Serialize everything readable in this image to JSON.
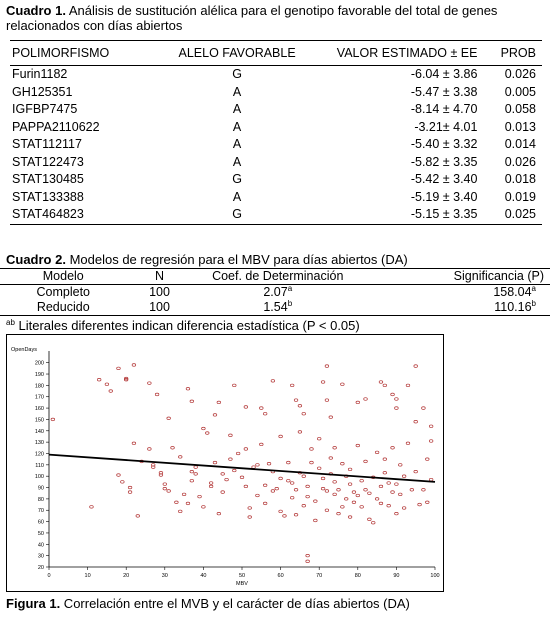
{
  "table1": {
    "caption_label": "Cuadro 1.",
    "caption_text": " Análisis de sustitución alélica para el genotipo favorable del total de genes relacionados con días abiertos",
    "headers": [
      "POLIMORFISMO",
      "ALELO FAVORABLE",
      "VALOR ESTIMADO ± EE",
      "PROB"
    ],
    "rows": [
      [
        "Furin1182",
        "G",
        "-6.04 ± 3.86",
        "0.026"
      ],
      [
        "GH125351",
        "A",
        "-5.47 ± 3.38",
        "0.005"
      ],
      [
        "IGFBP7475",
        "A",
        "-8.14 ± 4.70",
        "0.058"
      ],
      [
        "PAPPA2110622",
        "A",
        "-3.21± 4.01",
        "0.013"
      ],
      [
        "STAT112117",
        "A",
        "-5.40 ± 3.32",
        "0.014"
      ],
      [
        "STAT122473",
        "A",
        "-5.82 ± 3.35",
        "0.026"
      ],
      [
        "STAT130485",
        "G",
        "-5.42 ± 3.40",
        "0.018"
      ],
      [
        "STAT133388",
        "A",
        "-5.19 ± 3.40",
        "0.019"
      ],
      [
        "STAT464823",
        "G",
        "-5.15 ± 3.35",
        "0.025"
      ]
    ]
  },
  "table2": {
    "caption_label": "Cuadro 2.",
    "caption_text": " Modelos de regresión para el MBV para días abiertos (DA)",
    "headers": [
      "Modelo",
      "N",
      "Coef. de Determinación",
      "Significancia (P)"
    ],
    "rows": [
      {
        "modelo": "Completo",
        "n": "100",
        "coef": "2.07",
        "coef_sup": "a",
        "sig": "158.04",
        "sig_sup": "a"
      },
      {
        "modelo": "Reducido",
        "n": "100",
        "coef": "1.54",
        "coef_sup": "b",
        "sig": "110.16",
        "sig_sup": "b"
      }
    ],
    "note_sup": "ab",
    "note_text": " Literales diferentes indican diferencia estadística (P < 0.05)"
  },
  "figure": {
    "caption_label": "Figura 1.",
    "caption_text": " Correlación entre el MVB y el carácter de días abiertos (DA)"
  },
  "chart_data": {
    "type": "scatter",
    "xlabel": "MBV",
    "ylabel": "OpenDays",
    "xlim": [
      0,
      100
    ],
    "ylim": [
      20,
      205
    ],
    "x_ticks": [
      0,
      10,
      20,
      30,
      40,
      50,
      60,
      70,
      80,
      90,
      100
    ],
    "y_ticks": [
      20,
      30,
      40,
      50,
      60,
      70,
      80,
      90,
      100,
      110,
      120,
      130,
      140,
      150,
      160,
      170,
      180,
      190,
      200
    ],
    "trend_line": {
      "x": [
        0,
        100
      ],
      "y": [
        119,
        95
      ]
    },
    "marker_color": "#b03030",
    "line_color": "#000000",
    "points": [
      [
        1,
        150
      ],
      [
        13,
        185
      ],
      [
        15,
        181
      ],
      [
        16,
        175
      ],
      [
        18,
        195
      ],
      [
        20,
        186
      ],
      [
        20,
        185
      ],
      [
        22,
        198
      ],
      [
        26,
        182
      ],
      [
        28,
        172
      ],
      [
        31,
        151
      ],
      [
        36,
        177
      ],
      [
        37,
        166
      ],
      [
        43,
        154
      ],
      [
        44,
        165
      ],
      [
        48,
        180
      ],
      [
        51,
        161
      ],
      [
        55,
        160
      ],
      [
        56,
        155
      ],
      [
        58,
        184
      ],
      [
        63,
        180
      ],
      [
        64,
        167
      ],
      [
        65,
        162
      ],
      [
        66,
        155
      ],
      [
        71,
        183
      ],
      [
        72,
        197
      ],
      [
        72,
        167
      ],
      [
        73,
        152
      ],
      [
        76,
        181
      ],
      [
        80,
        165
      ],
      [
        82,
        168
      ],
      [
        86,
        183
      ],
      [
        87,
        180
      ],
      [
        89,
        172
      ],
      [
        90,
        168
      ],
      [
        90,
        160
      ],
      [
        93,
        180
      ],
      [
        95,
        197
      ],
      [
        95,
        148
      ],
      [
        97,
        160
      ],
      [
        99,
        144
      ],
      [
        11,
        73
      ],
      [
        18,
        101
      ],
      [
        19,
        95
      ],
      [
        21,
        90
      ],
      [
        21,
        86
      ],
      [
        23,
        65
      ],
      [
        22,
        129
      ],
      [
        24,
        113
      ],
      [
        26,
        124
      ],
      [
        27,
        110
      ],
      [
        27,
        108
      ],
      [
        29,
        103
      ],
      [
        29,
        101
      ],
      [
        30,
        93
      ],
      [
        30,
        89
      ],
      [
        31,
        87
      ],
      [
        32,
        125
      ],
      [
        33,
        77
      ],
      [
        34,
        69
      ],
      [
        34,
        117
      ],
      [
        35,
        84
      ],
      [
        36,
        76
      ],
      [
        37,
        104
      ],
      [
        37,
        96
      ],
      [
        38,
        108
      ],
      [
        38,
        102
      ],
      [
        39,
        82
      ],
      [
        40,
        73
      ],
      [
        40,
        142
      ],
      [
        41,
        138
      ],
      [
        42,
        94
      ],
      [
        42,
        91
      ],
      [
        43,
        112
      ],
      [
        44,
        67
      ],
      [
        45,
        86
      ],
      [
        45,
        102
      ],
      [
        46,
        97
      ],
      [
        47,
        115
      ],
      [
        47,
        136
      ],
      [
        48,
        105
      ],
      [
        49,
        120
      ],
      [
        50,
        99
      ],
      [
        51,
        91
      ],
      [
        51,
        124
      ],
      [
        52,
        72
      ],
      [
        52,
        64
      ],
      [
        53,
        108
      ],
      [
        54,
        110
      ],
      [
        54,
        83
      ],
      [
        55,
        128
      ],
      [
        56,
        92
      ],
      [
        56,
        76
      ],
      [
        57,
        111
      ],
      [
        58,
        104
      ],
      [
        58,
        87
      ],
      [
        59,
        89
      ],
      [
        60,
        98
      ],
      [
        60,
        69
      ],
      [
        60,
        135
      ],
      [
        61,
        65
      ],
      [
        62,
        112
      ],
      [
        62,
        96
      ],
      [
        63,
        94
      ],
      [
        63,
        81
      ],
      [
        64,
        88
      ],
      [
        64,
        66
      ],
      [
        65,
        103
      ],
      [
        65,
        139
      ],
      [
        66,
        100
      ],
      [
        66,
        74
      ],
      [
        67,
        91
      ],
      [
        67,
        82
      ],
      [
        67,
        30
      ],
      [
        67,
        25
      ],
      [
        68,
        124
      ],
      [
        68,
        112
      ],
      [
        69,
        78
      ],
      [
        69,
        61
      ],
      [
        70,
        107
      ],
      [
        70,
        133
      ],
      [
        71,
        98
      ],
      [
        71,
        89
      ],
      [
        72,
        87
      ],
      [
        72,
        70
      ],
      [
        73,
        102
      ],
      [
        73,
        116
      ],
      [
        74,
        95
      ],
      [
        74,
        84
      ],
      [
        74,
        125
      ],
      [
        75,
        88
      ],
      [
        75,
        67
      ],
      [
        76,
        111
      ],
      [
        76,
        73
      ],
      [
        77,
        100
      ],
      [
        77,
        80
      ],
      [
        78,
        106
      ],
      [
        78,
        93
      ],
      [
        78,
        64
      ],
      [
        79,
        86
      ],
      [
        79,
        77
      ],
      [
        80,
        83
      ],
      [
        80,
        127
      ],
      [
        81,
        96
      ],
      [
        81,
        73
      ],
      [
        82,
        113
      ],
      [
        82,
        88
      ],
      [
        83,
        85
      ],
      [
        83,
        62
      ],
      [
        84,
        99
      ],
      [
        84,
        59
      ],
      [
        85,
        121
      ],
      [
        85,
        80
      ],
      [
        86,
        91
      ],
      [
        86,
        76
      ],
      [
        87,
        115
      ],
      [
        87,
        103
      ],
      [
        88,
        94
      ],
      [
        88,
        74
      ],
      [
        89,
        86
      ],
      [
        89,
        125
      ],
      [
        90,
        93
      ],
      [
        90,
        67
      ],
      [
        91,
        110
      ],
      [
        91,
        84
      ],
      [
        92,
        100
      ],
      [
        92,
        72
      ],
      [
        93,
        129
      ],
      [
        94,
        88
      ],
      [
        95,
        104
      ],
      [
        96,
        75
      ],
      [
        97,
        88
      ],
      [
        98,
        115
      ],
      [
        98,
        77
      ],
      [
        99,
        97
      ],
      [
        99,
        131
      ]
    ]
  }
}
